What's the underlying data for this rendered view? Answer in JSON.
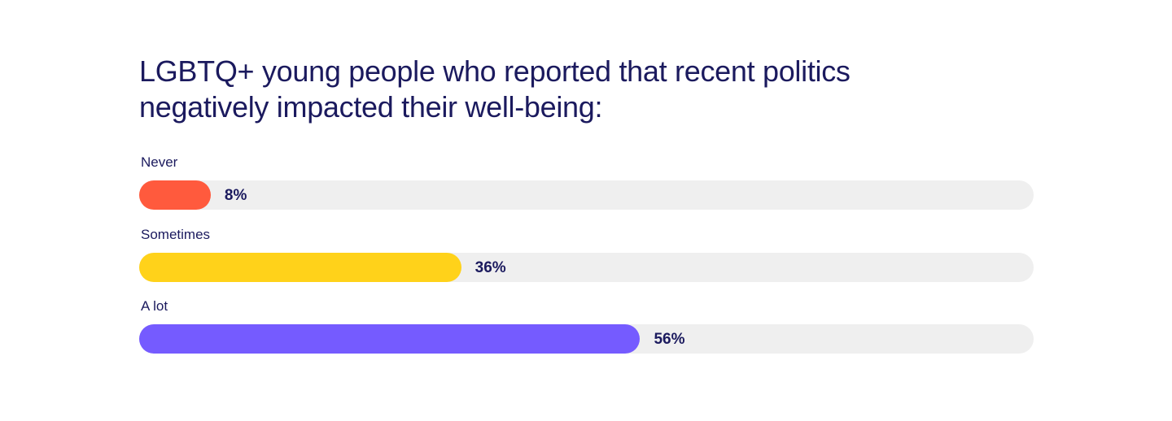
{
  "chart_data": {
    "type": "bar",
    "orientation": "horizontal",
    "title": "LGBTQ+ young people who reported that recent politics negatively impacted their well-being:",
    "categories": [
      "Never",
      "Sometimes",
      "A lot"
    ],
    "values": [
      8,
      36,
      56
    ],
    "value_labels": [
      "8%",
      "36%",
      "56%"
    ],
    "colors": [
      "#ff5a3d",
      "#ffd21a",
      "#755bff"
    ],
    "track_color": "#efefef",
    "xlim": [
      0,
      100
    ],
    "xlabel": "",
    "ylabel": "",
    "grid": false,
    "legend": "none"
  }
}
